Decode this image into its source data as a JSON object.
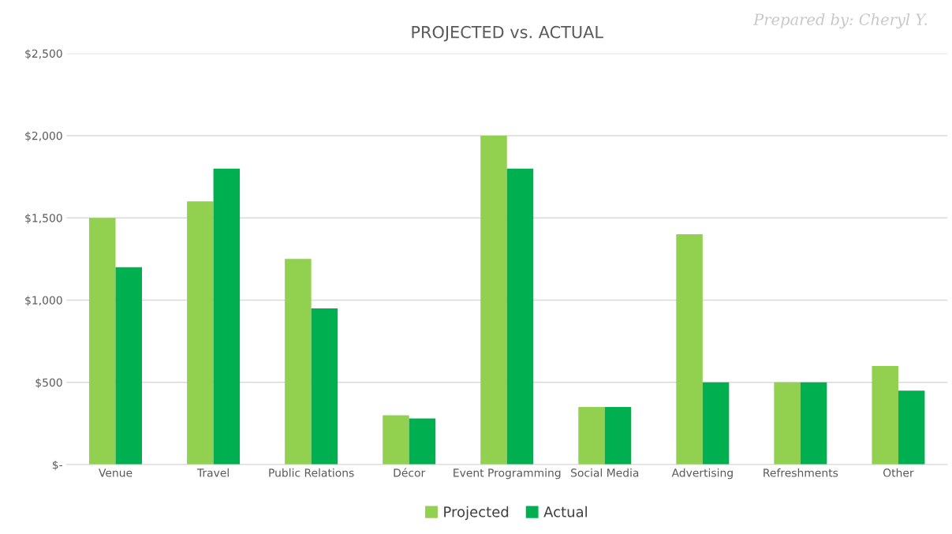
{
  "chart_data": {
    "type": "bar",
    "title": "PROJECTED vs. ACTUAL",
    "categories": [
      "Venue",
      "Travel",
      "Public Relations",
      "Décor",
      "Event Programming",
      "Social Media",
      "Advertising",
      "Refreshments",
      "Other"
    ],
    "series": [
      {
        "name": "Projected",
        "color": "#92d050",
        "values": [
          1500,
          1600,
          1250,
          300,
          2000,
          350,
          1400,
          500,
          600
        ]
      },
      {
        "name": "Actual",
        "color": "#00b050",
        "values": [
          1200,
          1800,
          950,
          280,
          1800,
          350,
          500,
          500,
          450
        ]
      }
    ],
    "ylim": [
      0,
      2500
    ],
    "yticks": [
      {
        "value": 0,
        "label": "$-"
      },
      {
        "value": 500,
        "label": "$500"
      },
      {
        "value": 1000,
        "label": "$1,000"
      },
      {
        "value": 1500,
        "label": "$1,500"
      },
      {
        "value": 2000,
        "label": "$2,000"
      },
      {
        "value": 2500,
        "label": "$2,500"
      }
    ],
    "grid": "y",
    "legend": "bottom",
    "annotations": [
      "Prepared by: Cheryl Y."
    ]
  }
}
